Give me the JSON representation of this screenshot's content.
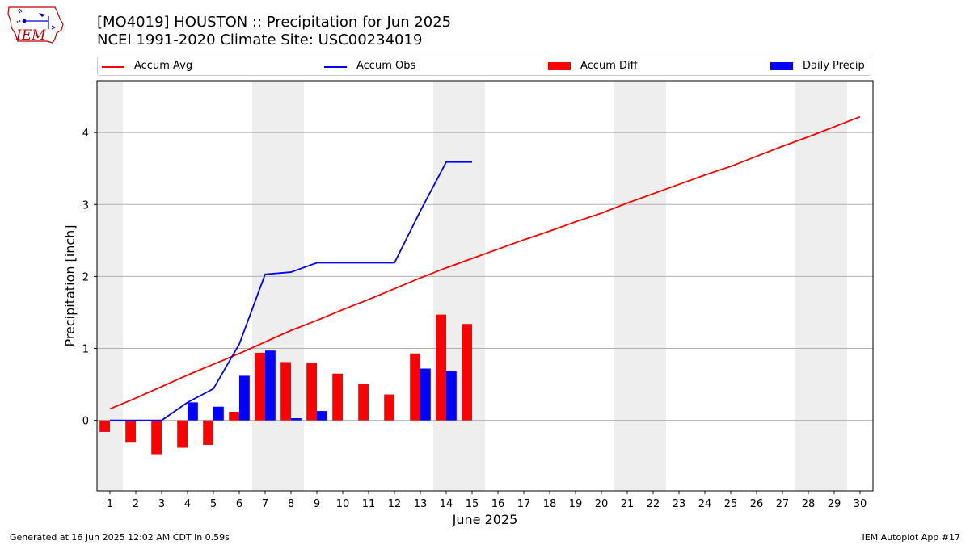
{
  "header": {
    "title_line1": "[MO4019] HOUSTON :: Precipitation for Jun 2025",
    "title_line2": "NCEI 1991-2020 Climate Site: USC00234019"
  },
  "logo": {
    "text": "IEM",
    "icon": "iem-iowa-logo"
  },
  "legend": {
    "accum_avg": "Accum Avg",
    "accum_obs": "Accum Obs",
    "accum_diff": "Accum Diff",
    "daily_precip": "Daily Precip"
  },
  "footer": {
    "left": "Generated at 16 Jun 2025 12:02 AM CDT in 0.59s",
    "right": "IEM Autoplot App #17"
  },
  "colors": {
    "accum_avg": "#ff0000",
    "accum_obs": "#0000ff",
    "accum_diff": "#ff0000",
    "daily_precip": "#0000ff",
    "weekend_shade": "#eeeeee",
    "grid": "#b0b0b0"
  },
  "chart_data": {
    "type": "bar",
    "xlabel": "June 2025",
    "ylabel": "Precipitation [inch]",
    "xlim": [
      0.5,
      30.5
    ],
    "ylim": [
      -0.98,
      4.72
    ],
    "x": [
      1,
      2,
      3,
      4,
      5,
      6,
      7,
      8,
      9,
      10,
      11,
      12,
      13,
      14,
      15,
      16,
      17,
      18,
      19,
      20,
      21,
      22,
      23,
      24,
      25,
      26,
      27,
      28,
      29,
      30
    ],
    "x_tick_labels": [
      "1",
      "2",
      "3",
      "4",
      "5",
      "6",
      "7",
      "8",
      "9",
      "10",
      "11",
      "12",
      "13",
      "14",
      "15",
      "16",
      "17",
      "18",
      "19",
      "20",
      "21",
      "22",
      "23",
      "24",
      "25",
      "26",
      "27",
      "28",
      "29",
      "30"
    ],
    "y_ticks": [
      0,
      1,
      2,
      3,
      4
    ],
    "y_tick_labels": [
      "0",
      "1",
      "2",
      "3",
      "4"
    ],
    "grid": "horizontal",
    "legend_position": "top",
    "shaded_weekends": [
      [
        1,
        1
      ],
      [
        7,
        8
      ],
      [
        14,
        15
      ],
      [
        21,
        22
      ],
      [
        28,
        29
      ]
    ],
    "series": [
      {
        "name": "Accum Avg",
        "kind": "line",
        "x": [
          1,
          2,
          3,
          4,
          5,
          6,
          7,
          8,
          9,
          10,
          11,
          12,
          13,
          14,
          15,
          16,
          17,
          18,
          19,
          20,
          21,
          22,
          23,
          24,
          25,
          26,
          27,
          28,
          29,
          30
        ],
        "values": [
          0.16,
          0.31,
          0.47,
          0.63,
          0.78,
          0.93,
          1.09,
          1.25,
          1.39,
          1.54,
          1.68,
          1.83,
          1.98,
          2.12,
          2.25,
          2.38,
          2.51,
          2.63,
          2.76,
          2.88,
          3.02,
          3.15,
          3.28,
          3.41,
          3.53,
          3.67,
          3.81,
          3.94,
          4.08,
          4.22
        ]
      },
      {
        "name": "Accum Obs",
        "kind": "line",
        "x": [
          1,
          2,
          3,
          4,
          5,
          6,
          7,
          8,
          9,
          10,
          11,
          12,
          13,
          14,
          15
        ],
        "values": [
          0,
          0,
          0,
          0.25,
          0.44,
          1.06,
          2.03,
          2.06,
          2.19,
          2.19,
          2.19,
          2.19,
          2.91,
          3.59,
          3.59
        ]
      },
      {
        "name": "Accum Diff",
        "kind": "bar",
        "x": [
          1,
          2,
          3,
          4,
          5,
          6,
          7,
          8,
          9,
          10,
          11,
          12,
          13,
          14,
          15
        ],
        "values": [
          -0.16,
          -0.31,
          -0.47,
          -0.38,
          -0.34,
          0.12,
          0.94,
          0.81,
          0.8,
          0.65,
          0.51,
          0.36,
          0.93,
          1.47,
          1.34
        ]
      },
      {
        "name": "Daily Precip",
        "kind": "bar",
        "x": [
          1,
          2,
          3,
          4,
          5,
          6,
          7,
          8,
          9,
          10,
          11,
          12,
          13,
          14,
          15
        ],
        "values": [
          0,
          0,
          0,
          0.25,
          0.19,
          0.62,
          0.97,
          0.03,
          0.13,
          0,
          0,
          0,
          0.72,
          0.68,
          0
        ]
      }
    ]
  }
}
